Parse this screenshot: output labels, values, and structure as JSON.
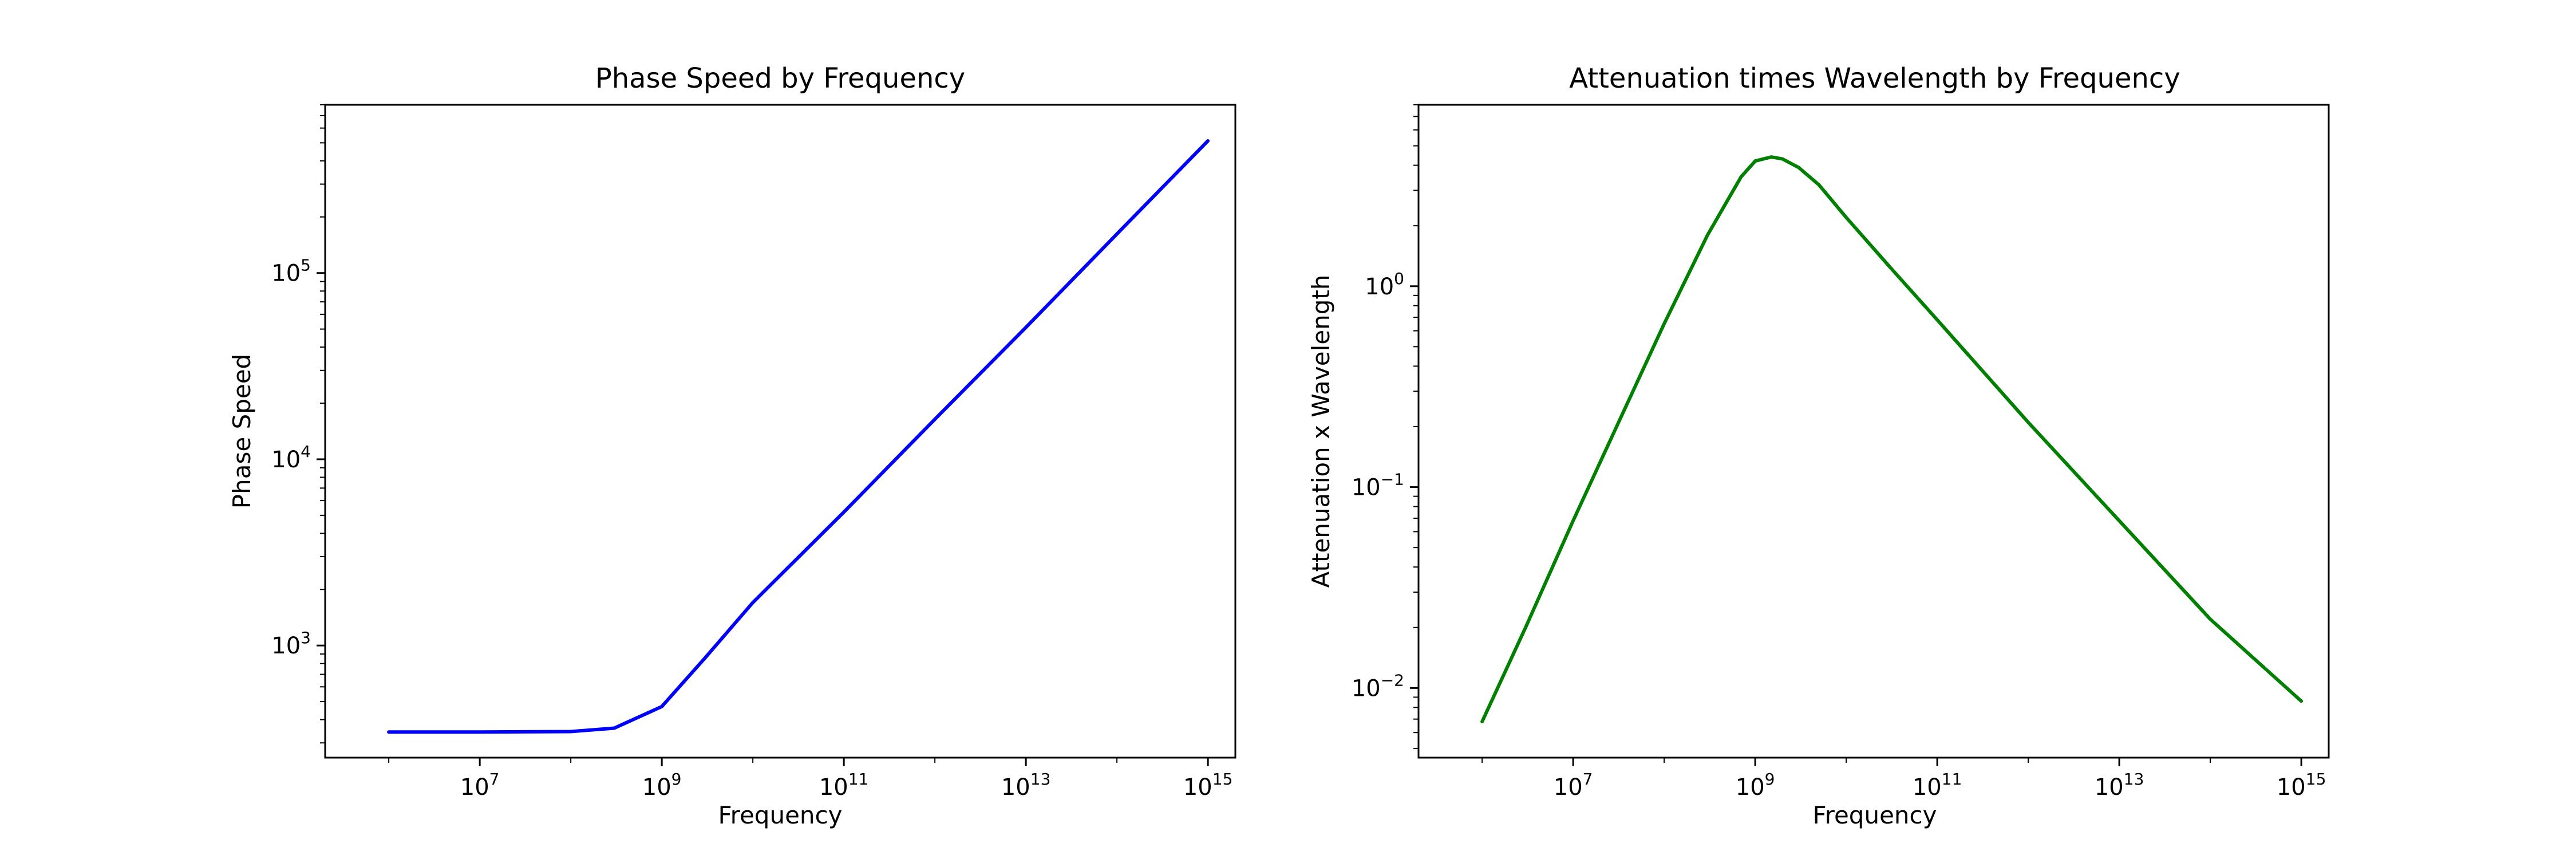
{
  "chart_data": [
    {
      "type": "line",
      "title": "Phase Speed by Frequency",
      "xlabel": "Frequency",
      "ylabel": "Phase Speed",
      "xscale": "log",
      "yscale": "log",
      "xlim": [
        200000,
        2000000000000000
      ],
      "ylim": [
        250,
        800000
      ],
      "x_ticks": [
        {
          "base": "10",
          "exp": "7",
          "value": 10000000
        },
        {
          "base": "10",
          "exp": "9",
          "value": 1000000000
        },
        {
          "base": "10",
          "exp": "11",
          "value": 100000000000
        },
        {
          "base": "10",
          "exp": "13",
          "value": 10000000000000
        },
        {
          "base": "10",
          "exp": "15",
          "value": 1000000000000000
        }
      ],
      "y_ticks": [
        {
          "base": "10",
          "exp": "3",
          "value": 1000
        },
        {
          "base": "10",
          "exp": "4",
          "value": 10000
        },
        {
          "base": "10",
          "exp": "5",
          "value": 100000
        }
      ],
      "grid": false,
      "series": [
        {
          "color": "#0000ff",
          "x": [
            1000000,
            10000000,
            100000000,
            300000000,
            1000000000,
            3000000000,
            10000000000,
            100000000000,
            1000000000000,
            10000000000000,
            100000000000000,
            1000000000000000
          ],
          "y": [
            343,
            343,
            345,
            360,
            470,
            860,
            1700,
            5200,
            16400,
            51000,
            162000,
            512000
          ]
        }
      ]
    },
    {
      "type": "line",
      "title": "Attenuation times Wavelength by Frequency",
      "xlabel": "Frequency",
      "ylabel": "Attenuation x Wavelength",
      "xscale": "log",
      "yscale": "log",
      "xlim": [
        200000,
        2000000000000000
      ],
      "ylim": [
        0.0045,
        8
      ],
      "x_ticks": [
        {
          "base": "10",
          "exp": "7",
          "value": 10000000
        },
        {
          "base": "10",
          "exp": "9",
          "value": 1000000000
        },
        {
          "base": "10",
          "exp": "11",
          "value": 100000000000
        },
        {
          "base": "10",
          "exp": "13",
          "value": 10000000000000
        },
        {
          "base": "10",
          "exp": "15",
          "value": 1000000000000000
        }
      ],
      "y_ticks": [
        {
          "base": "10",
          "exp": "−2",
          "value": 0.01
        },
        {
          "base": "10",
          "exp": "−1",
          "value": 0.1
        },
        {
          "base": "10",
          "exp": "0",
          "value": 1
        }
      ],
      "grid": false,
      "series": [
        {
          "color": "#008000",
          "x": [
            1000000,
            3000000,
            10000000,
            30000000,
            100000000,
            300000000,
            700000000,
            1000000000,
            1500000000,
            2000000000,
            3000000000,
            5000000000,
            10000000000,
            30000000000,
            100000000000,
            1000000000000,
            10000000000000,
            100000000000000,
            1000000000000000
          ],
          "y": [
            0.0068,
            0.02,
            0.068,
            0.2,
            0.65,
            1.8,
            3.5,
            4.2,
            4.4,
            4.3,
            3.9,
            3.2,
            2.2,
            1.25,
            0.68,
            0.21,
            0.068,
            0.022,
            0.0086
          ]
        }
      ]
    }
  ]
}
